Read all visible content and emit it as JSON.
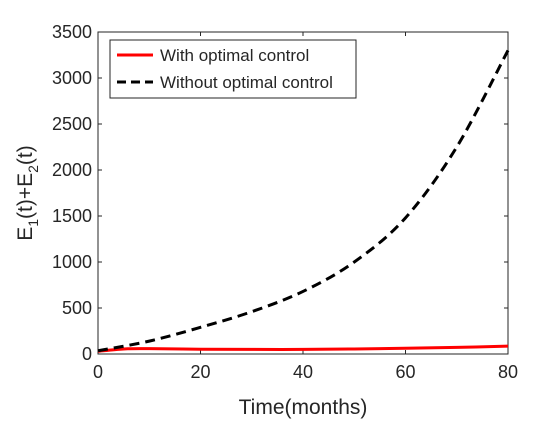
{
  "chart_data": {
    "type": "line",
    "xlabel": "Time(months)",
    "ylabel_main": "E",
    "ylabel_sub1": "1",
    "ylabel_mid": "(t)+E",
    "ylabel_sub2": "2",
    "ylabel_end": "(t)",
    "xlim": [
      0,
      80
    ],
    "ylim": [
      0,
      3500
    ],
    "xticks": [
      0,
      20,
      40,
      60,
      80
    ],
    "xtick_labels": [
      "0",
      "20",
      "40",
      "60",
      "80"
    ],
    "yticks": [
      0,
      500,
      1000,
      1500,
      2000,
      2500,
      3000,
      3500
    ],
    "ytick_labels": [
      "0",
      "500",
      "1000",
      "1500",
      "2000",
      "2500",
      "3000",
      "3500"
    ],
    "grid": false,
    "legend_position": "top-left",
    "series": [
      {
        "name": "With optimal control",
        "color": "#ff0000",
        "style": "solid",
        "x": [
          0,
          5,
          10,
          20,
          30,
          40,
          50,
          60,
          70,
          80
        ],
        "y": [
          30,
          55,
          58,
          52,
          50,
          50,
          55,
          62,
          72,
          85
        ]
      },
      {
        "name": "Without optimal control",
        "color": "#000000",
        "style": "dashed",
        "x": [
          0,
          10,
          20,
          30,
          40,
          50,
          60,
          70,
          80
        ],
        "y": [
          35,
          140,
          290,
          460,
          680,
          1000,
          1480,
          2250,
          3300
        ]
      }
    ]
  }
}
